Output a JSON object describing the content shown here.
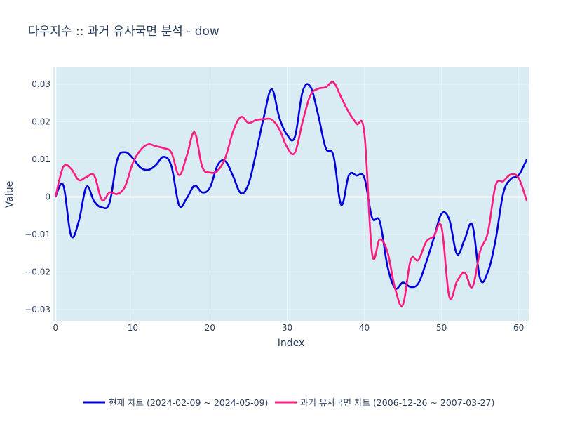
{
  "chart_data": {
    "type": "line",
    "title": "다우지수 :: 과거 유사국면 분석 - dow",
    "xlabel": "Index",
    "ylabel": "Value",
    "xlim": [
      -0.3,
      61.3
    ],
    "ylim": [
      -0.033,
      0.0345
    ],
    "x_ticks": [
      0,
      10,
      20,
      30,
      40,
      50,
      60
    ],
    "x_tick_labels": [
      "0",
      "10",
      "20",
      "30",
      "40",
      "50",
      "60"
    ],
    "y_ticks": [
      -0.03,
      -0.02,
      -0.01,
      0,
      0.01,
      0.02,
      0.03
    ],
    "y_tick_labels": [
      "−0.03",
      "−0.02",
      "−0.01",
      "0",
      "0.01",
      "0.02",
      "0.03"
    ],
    "grid": true,
    "plot_bg": "#d9ecf3",
    "legend_position": "bottom-center",
    "x": [
      0,
      1,
      2,
      3,
      4,
      5,
      6,
      7,
      8,
      9,
      10,
      11,
      12,
      13,
      14,
      15,
      16,
      17,
      18,
      19,
      20,
      21,
      22,
      23,
      24,
      25,
      26,
      27,
      28,
      29,
      30,
      31,
      32,
      33,
      34,
      35,
      36,
      37,
      38,
      39,
      40,
      41,
      42,
      43,
      44,
      45,
      46,
      47,
      48,
      49,
      50,
      51,
      52,
      53,
      54,
      55,
      56,
      57,
      58,
      59,
      60,
      61
    ],
    "series": [
      {
        "name": "현재 차트 (2024-02-09 ~ 2024-05-09)",
        "color": "#0000dd",
        "values": [
          0.0001,
          0.0031,
          -0.0103,
          -0.0065,
          0.0027,
          -0.0012,
          -0.0028,
          -0.0015,
          0.01,
          0.0119,
          0.0103,
          0.0078,
          0.0072,
          0.0085,
          0.0107,
          0.0082,
          -0.0022,
          -0.0003,
          0.003,
          0.0012,
          0.0025,
          0.0085,
          0.0095,
          0.0055,
          0.001,
          0.0035,
          0.012,
          0.0215,
          0.0287,
          0.021,
          0.0165,
          0.016,
          0.028,
          0.0294,
          0.022,
          0.013,
          0.011,
          -0.0021,
          0.0058,
          0.0057,
          0.0051,
          -0.0055,
          -0.0065,
          -0.0185,
          -0.0243,
          -0.0228,
          -0.024,
          -0.023,
          -0.0175,
          -0.011,
          -0.0045,
          -0.006,
          -0.0152,
          -0.0113,
          -0.0075,
          -0.0218,
          -0.02,
          -0.0115,
          0.001,
          0.0048,
          0.0058,
          0.0098
        ]
      },
      {
        "name": "과거 유사국면 차트 (2006-12-26 ~ 2007-03-27)",
        "color": "#ff1a80",
        "values": [
          0.0002,
          0.008,
          0.0075,
          0.0045,
          0.0053,
          0.0057,
          -0.0008,
          0.0012,
          0.0008,
          0.0028,
          0.009,
          0.0125,
          0.014,
          0.0135,
          0.013,
          0.0118,
          0.0058,
          0.011,
          0.0172,
          0.008,
          0.0065,
          0.007,
          0.0105,
          0.0175,
          0.0213,
          0.0197,
          0.0205,
          0.0207,
          0.0206,
          0.018,
          0.0132,
          0.0118,
          0.02,
          0.027,
          0.0288,
          0.0292,
          0.0305,
          0.0265,
          0.0225,
          0.0195,
          0.017,
          -0.015,
          -0.0113,
          -0.0147,
          -0.0245,
          -0.0287,
          -0.0168,
          -0.0168,
          -0.012,
          -0.0105,
          -0.008,
          -0.0265,
          -0.0225,
          -0.0202,
          -0.024,
          -0.0145,
          -0.0095,
          0.003,
          0.0042,
          0.006,
          0.005,
          -0.0008
        ]
      }
    ]
  }
}
